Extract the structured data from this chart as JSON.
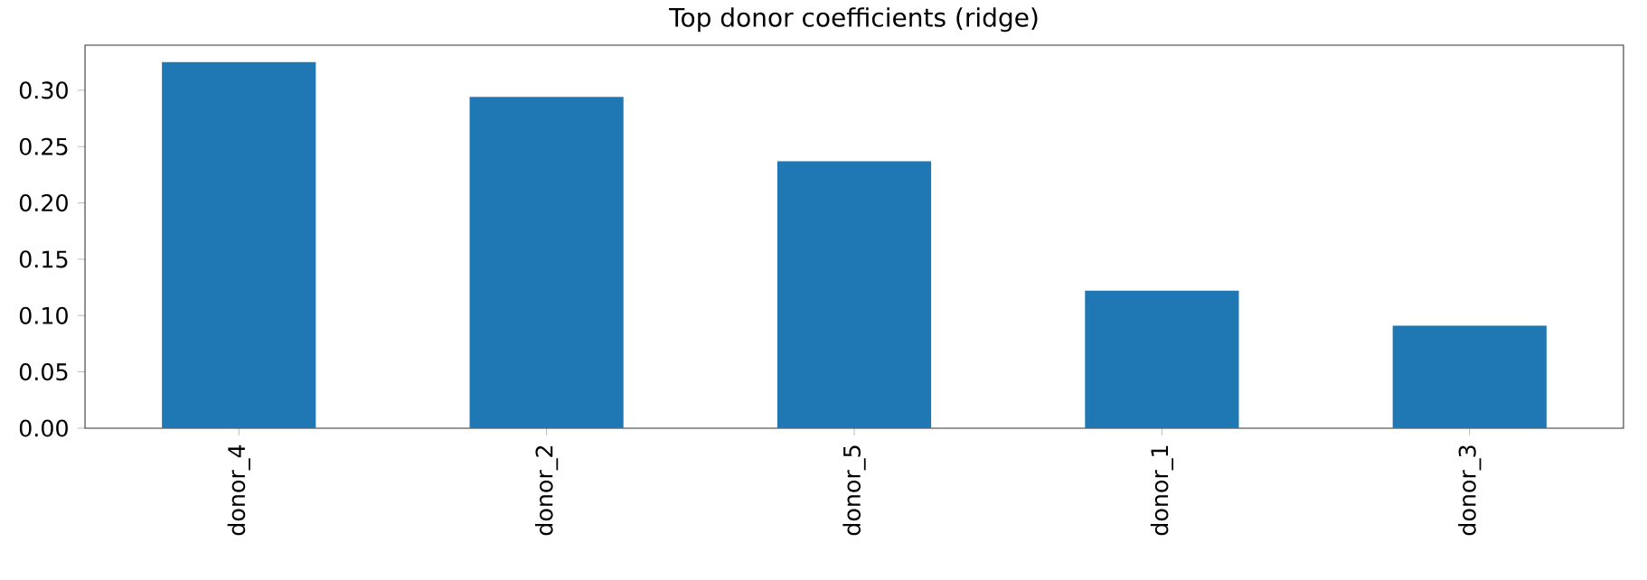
{
  "chart_data": {
    "type": "bar",
    "title": "Top donor coefficients (ridge)",
    "categories": [
      "donor_4",
      "donor_2",
      "donor_5",
      "donor_1",
      "donor_3"
    ],
    "values": [
      0.325,
      0.294,
      0.237,
      0.122,
      0.091
    ],
    "color": "#1f77b4",
    "ylim": [
      0,
      0.34
    ],
    "yticks": [
      {
        "value": 0,
        "label": "0.00"
      },
      {
        "value": 0.05,
        "label": "0.05"
      },
      {
        "value": 0.1,
        "label": "0.10"
      },
      {
        "value": 0.15,
        "label": "0.15"
      },
      {
        "value": 0.2,
        "label": "0.20"
      },
      {
        "value": 0.25,
        "label": "0.25"
      },
      {
        "value": 0.3,
        "label": "0.30"
      }
    ]
  }
}
